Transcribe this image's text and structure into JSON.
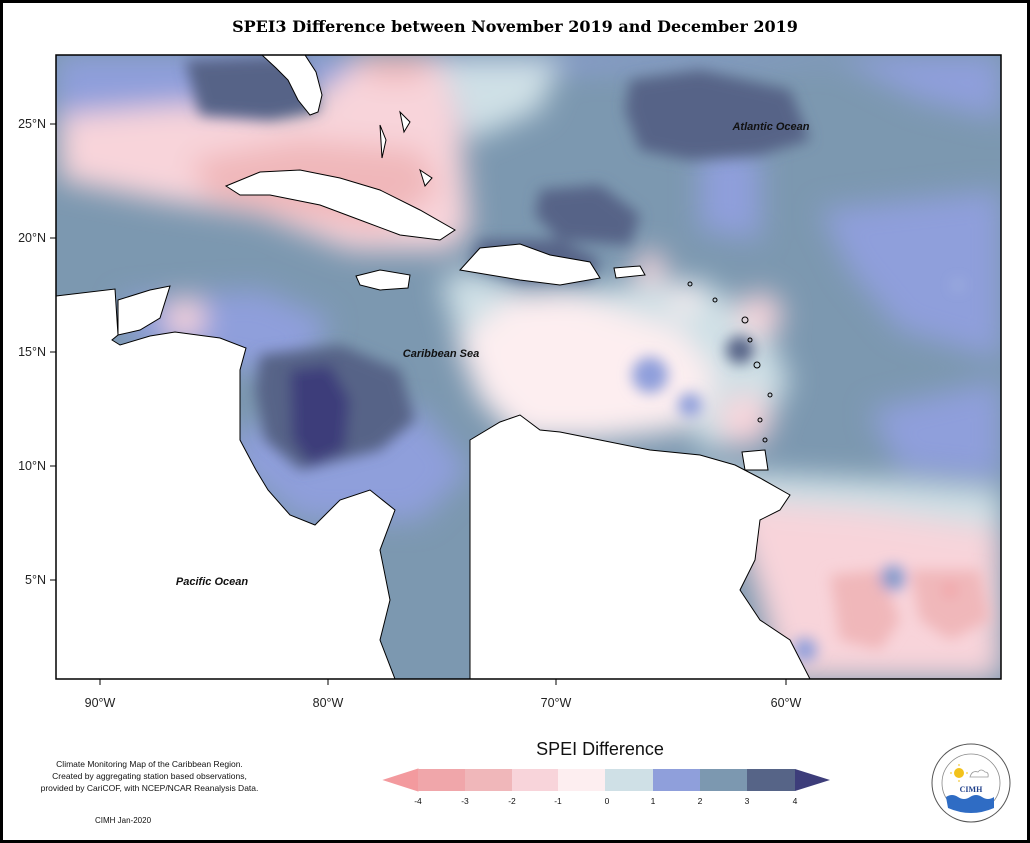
{
  "title": "SPEI3 Difference between November 2019 and December 2019",
  "map": {
    "lat_ticks": [
      "25°N",
      "20°N",
      "15°N",
      "10°N",
      "5°N"
    ],
    "lon_ticks": [
      "90°W",
      "80°W",
      "70°W",
      "60°W"
    ],
    "ocean_labels": {
      "atlantic": "Atlantic Ocean",
      "caribbean": "Caribbean Sea",
      "pacific": "Pacific Ocean"
    }
  },
  "legend": {
    "title": "SPEI Difference",
    "labels": [
      "-4",
      "-3",
      "-2",
      "-1",
      "0",
      "1",
      "2",
      "3",
      "4"
    ],
    "colors": [
      "#f39a9e",
      "#f0b7ba",
      "#f8d4da",
      "#fdeef0",
      "#cfe0e6",
      "#8f9fdb",
      "#7c98b0",
      "#566487",
      "#3d3d7a"
    ]
  },
  "caption": {
    "lines": [
      "Climate Monitoring Map of the Caribbean Region.",
      "Created by aggregating station based observations,",
      "provided by CariCOF, with NCEP/NCAR Reanalysis Data."
    ],
    "credit": "CIMH Jan-2020"
  },
  "logo": {
    "name": "CIMH"
  }
}
